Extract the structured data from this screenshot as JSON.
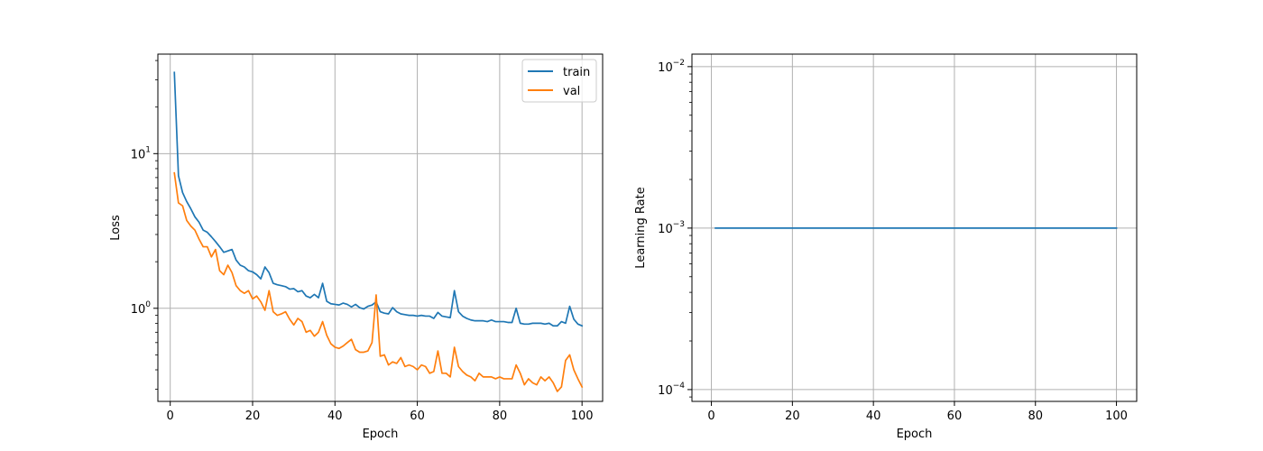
{
  "chart_data": [
    {
      "type": "line",
      "xlabel": "Epoch",
      "ylabel": "Loss",
      "yscale": "log",
      "xlim": [
        -3,
        105
      ],
      "ylim": [
        0.25,
        44
      ],
      "xticks": [
        0,
        20,
        40,
        60,
        80,
        100
      ],
      "yticks": [
        {
          "value": 1,
          "base": "10",
          "exp": "0"
        },
        {
          "value": 10,
          "base": "10",
          "exp": "1"
        }
      ],
      "grid": true,
      "legend": "top-right",
      "x": [
        1,
        2,
        3,
        4,
        5,
        6,
        7,
        8,
        9,
        10,
        11,
        12,
        13,
        14,
        15,
        16,
        17,
        18,
        19,
        20,
        21,
        22,
        23,
        24,
        25,
        26,
        27,
        28,
        29,
        30,
        31,
        32,
        33,
        34,
        35,
        36,
        37,
        38,
        39,
        40,
        41,
        42,
        43,
        44,
        45,
        46,
        47,
        48,
        49,
        50,
        51,
        52,
        53,
        54,
        55,
        56,
        57,
        58,
        59,
        60,
        61,
        62,
        63,
        64,
        65,
        66,
        67,
        68,
        69,
        70,
        71,
        72,
        73,
        74,
        75,
        76,
        77,
        78,
        79,
        80,
        81,
        82,
        83,
        84,
        85,
        86,
        87,
        88,
        89,
        90,
        91,
        92,
        93,
        94,
        95,
        96,
        97,
        98,
        99,
        100
      ],
      "series": [
        {
          "name": "train",
          "color": "#1f77b4",
          "values": [
            33.5,
            7.2,
            5.6,
            4.9,
            4.4,
            3.9,
            3.6,
            3.2,
            3.1,
            2.9,
            2.7,
            2.5,
            2.3,
            2.35,
            2.4,
            2.05,
            1.9,
            1.85,
            1.75,
            1.72,
            1.65,
            1.55,
            1.85,
            1.7,
            1.45,
            1.42,
            1.4,
            1.38,
            1.33,
            1.34,
            1.28,
            1.3,
            1.2,
            1.17,
            1.23,
            1.17,
            1.45,
            1.11,
            1.07,
            1.06,
            1.05,
            1.08,
            1.06,
            1.02,
            1.06,
            1.01,
            0.99,
            1.03,
            1.05,
            1.1,
            0.95,
            0.93,
            0.92,
            1.01,
            0.95,
            0.92,
            0.91,
            0.9,
            0.9,
            0.89,
            0.9,
            0.89,
            0.89,
            0.86,
            0.94,
            0.89,
            0.88,
            0.87,
            1.3,
            0.95,
            0.89,
            0.86,
            0.84,
            0.83,
            0.83,
            0.83,
            0.82,
            0.84,
            0.82,
            0.82,
            0.82,
            0.81,
            0.81,
            1.0,
            0.8,
            0.79,
            0.79,
            0.8,
            0.8,
            0.8,
            0.79,
            0.8,
            0.77,
            0.77,
            0.82,
            0.8,
            1.03,
            0.85,
            0.79,
            0.77
          ]
        },
        {
          "name": "val",
          "color": "#ff7f0e",
          "values": [
            7.5,
            4.8,
            4.6,
            3.7,
            3.4,
            3.2,
            2.8,
            2.5,
            2.5,
            2.15,
            2.4,
            1.75,
            1.65,
            1.9,
            1.7,
            1.4,
            1.3,
            1.25,
            1.3,
            1.15,
            1.2,
            1.1,
            0.97,
            1.3,
            0.95,
            0.9,
            0.92,
            0.95,
            0.85,
            0.78,
            0.86,
            0.82,
            0.7,
            0.72,
            0.66,
            0.7,
            0.82,
            0.67,
            0.59,
            0.56,
            0.55,
            0.57,
            0.6,
            0.63,
            0.54,
            0.52,
            0.52,
            0.53,
            0.6,
            1.22,
            0.49,
            0.5,
            0.43,
            0.45,
            0.44,
            0.48,
            0.42,
            0.43,
            0.42,
            0.4,
            0.43,
            0.42,
            0.38,
            0.39,
            0.53,
            0.38,
            0.38,
            0.36,
            0.56,
            0.42,
            0.39,
            0.37,
            0.36,
            0.34,
            0.38,
            0.36,
            0.36,
            0.36,
            0.35,
            0.36,
            0.35,
            0.35,
            0.35,
            0.43,
            0.38,
            0.32,
            0.35,
            0.33,
            0.32,
            0.36,
            0.34,
            0.36,
            0.33,
            0.29,
            0.31,
            0.46,
            0.5,
            0.4,
            0.35,
            0.31
          ]
        }
      ]
    },
    {
      "type": "line",
      "xlabel": "Epoch",
      "ylabel": "Learning Rate",
      "yscale": "log",
      "xlim": [
        -4.8,
        105
      ],
      "ylim": [
        8.45e-05,
        0.01195
      ],
      "xticks": [
        0,
        20,
        40,
        60,
        80,
        100
      ],
      "yticks": [
        {
          "value": 0.0001,
          "base": "10",
          "exp": "−4"
        },
        {
          "value": 0.001,
          "base": "10",
          "exp": "−3"
        },
        {
          "value": 0.01,
          "base": "10",
          "exp": "−2"
        }
      ],
      "grid": true,
      "x": [
        1,
        100
      ],
      "series": [
        {
          "color": "#1f77b4",
          "values": [
            0.001,
            0.001
          ]
        }
      ]
    }
  ]
}
